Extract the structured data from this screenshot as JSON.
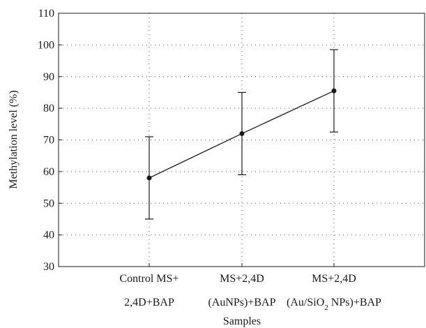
{
  "chart_data": {
    "type": "line",
    "xlabel": "Samples",
    "ylabel": "Methylation level (%)",
    "ylim": [
      30,
      110
    ],
    "yticks": [
      30,
      40,
      50,
      60,
      70,
      80,
      90,
      100,
      110
    ],
    "grid": true,
    "categories": [
      {
        "line1": "Control MS+",
        "line2": "2,4D+BAP"
      },
      {
        "line1": "MS+2,4D",
        "line2": "(AuNPs)+BAP"
      },
      {
        "line1": "MS+2,4D",
        "line2_pre": "(Au/SiO",
        "line2_sub": "2",
        "line2_post": " NPs)+BAP"
      }
    ],
    "series": [
      {
        "values": [
          58,
          72,
          85.5
        ],
        "error_lower": [
          45,
          59,
          72.5
        ],
        "error_upper": [
          71,
          85,
          98.5
        ]
      }
    ],
    "colors": {
      "line": "#1a1a1a",
      "grid": "#555555"
    }
  }
}
